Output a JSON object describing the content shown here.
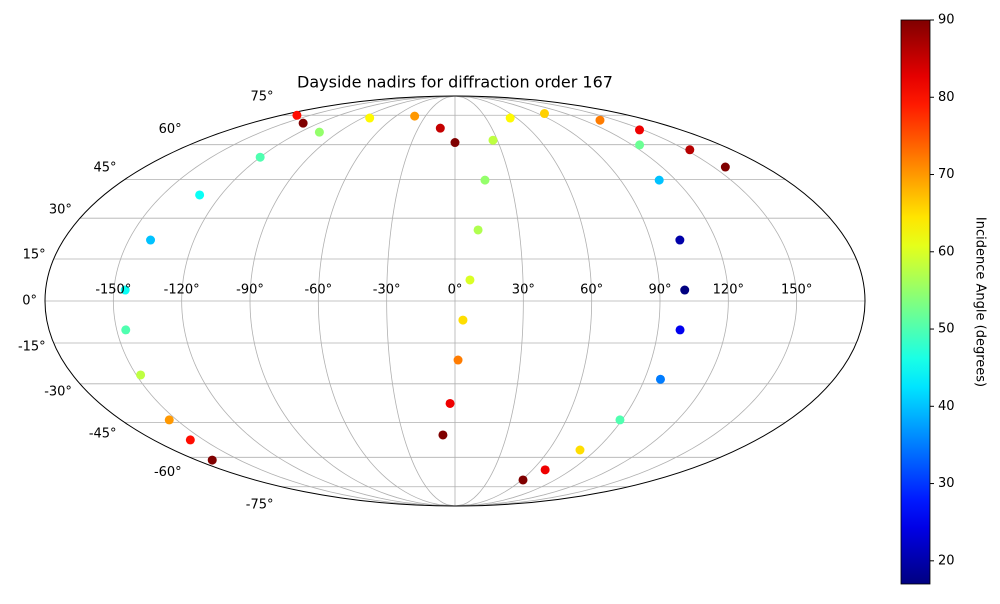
{
  "chart_data": {
    "type": "scatter",
    "projection": "mollweide",
    "title": "Dayside nadirs for diffraction order 167",
    "x": [
      0,
      -12,
      -41,
      -83,
      -105,
      -120,
      -131,
      -140,
      -145,
      -146,
      -148,
      -154,
      -158,
      -169,
      -134,
      -164,
      -7,
      -2.5,
      1.4,
      3.5,
      6.6,
      10.8,
      16.3,
      26.9,
      53.7,
      97,
      135,
      147,
      152.7,
      156.8,
      125,
      111,
      103.4,
      101,
      99.8,
      97.6,
      88.9,
      79.9,
      69.8,
      61.2
    ],
    "y": [
      61,
      68,
      74.5,
      73.4,
      66,
      54.4,
      38.9,
      21.9,
      3.9,
      -10.3,
      -26.7,
      -44,
      -52.3,
      -61.3,
      70.6,
      75,
      -50.2,
      -37.5,
      -21.2,
      -6.8,
      7.5,
      25.6,
      44.8,
      62.1,
      73.4,
      76,
      72.2,
      67.1,
      57.7,
      50.2,
      59.9,
      44.8,
      21.9,
      3.9,
      -10.3,
      -28.3,
      -44,
      -56.7,
      -66,
      -71.2
    ],
    "c": [
      90,
      85,
      70,
      63,
      55,
      50,
      45,
      40,
      45,
      50,
      58,
      70,
      80,
      90,
      90,
      80,
      90,
      82,
      72,
      65,
      60,
      57,
      55,
      58,
      63,
      66,
      72,
      82,
      86,
      90,
      52,
      40,
      20,
      17,
      25,
      35,
      50,
      65,
      82,
      90
    ],
    "colormap": "jet",
    "clim": [
      17,
      90
    ],
    "colorbar_label": "Incidence Angle (degrees)",
    "cticks": [
      20,
      30,
      40,
      50,
      60,
      70,
      80,
      90
    ],
    "xticks": [
      {
        "value": -150,
        "label": "-150°"
      },
      {
        "value": -120,
        "label": "-120°"
      },
      {
        "value": -90,
        "label": "-90°"
      },
      {
        "value": -60,
        "label": "-60°"
      },
      {
        "value": -30,
        "label": "-30°"
      },
      {
        "value": 0,
        "label": "0°"
      },
      {
        "value": 30,
        "label": "30°"
      },
      {
        "value": 60,
        "label": "60°"
      },
      {
        "value": 90,
        "label": "90°"
      },
      {
        "value": 120,
        "label": "120°"
      },
      {
        "value": 150,
        "label": "150°"
      }
    ],
    "yticks": [
      {
        "value": -75,
        "label": "-75°"
      },
      {
        "value": -60,
        "label": "-60°"
      },
      {
        "value": -45,
        "label": "-45°"
      },
      {
        "value": -30,
        "label": "-30°"
      },
      {
        "value": -15,
        "label": "-15°"
      },
      {
        "value": 0,
        "label": "0°"
      },
      {
        "value": 15,
        "label": "15°"
      },
      {
        "value": 30,
        "label": "30°"
      },
      {
        "value": 45,
        "label": "45°"
      },
      {
        "value": 60,
        "label": "60°"
      },
      {
        "value": 75,
        "label": "75°"
      }
    ],
    "grid": true
  }
}
